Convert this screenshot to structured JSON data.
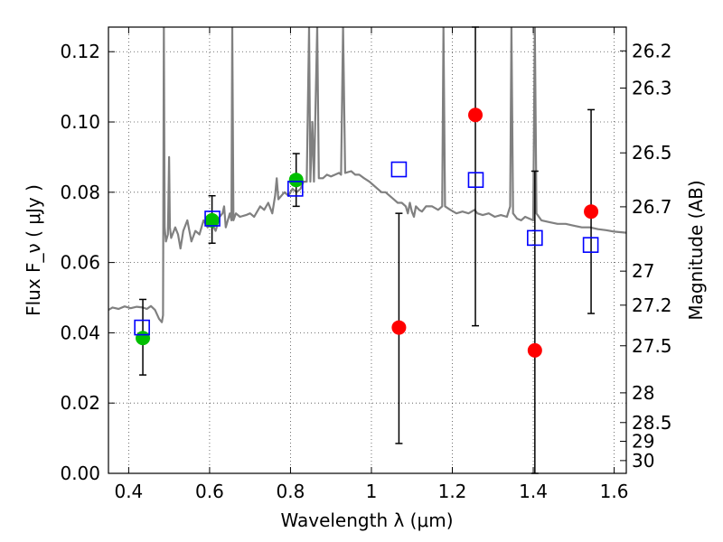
{
  "chart_data": {
    "type": "scatter",
    "xlabel": "Wavelength  λ (μm)",
    "ylabel": "Flux  F_ν  ( μJy )",
    "ylabel_right": "Magnitude (AB)",
    "xlim": [
      0.35,
      1.63
    ],
    "ylim": [
      0.0,
      0.127
    ],
    "grid": true,
    "x_ticks": [
      {
        "value": 0.4,
        "label": "0.4"
      },
      {
        "value": 0.6,
        "label": "0.6"
      },
      {
        "value": 0.8,
        "label": "0.8"
      },
      {
        "value": 1.0,
        "label": "1"
      },
      {
        "value": 1.2,
        "label": "1.2"
      },
      {
        "value": 1.4,
        "label": "1.4"
      },
      {
        "value": 1.6,
        "label": "1.6"
      }
    ],
    "y_ticks": [
      {
        "value": 0.0,
        "label": "0.00"
      },
      {
        "value": 0.02,
        "label": "0.02"
      },
      {
        "value": 0.04,
        "label": "0.04"
      },
      {
        "value": 0.06,
        "label": "0.06"
      },
      {
        "value": 0.08,
        "label": "0.08"
      },
      {
        "value": 0.1,
        "label": "0.10"
      },
      {
        "value": 0.12,
        "label": "0.12"
      }
    ],
    "right_ticks": [
      {
        "mag": 26.2,
        "label": "26.2"
      },
      {
        "mag": 26.3,
        "label": "26.3"
      },
      {
        "mag": 26.5,
        "label": "26.5"
      },
      {
        "mag": 26.7,
        "label": "26.7"
      },
      {
        "mag": 27.0,
        "label": "27"
      },
      {
        "mag": 27.2,
        "label": "27.2"
      },
      {
        "mag": 27.5,
        "label": "27.5"
      },
      {
        "mag": 28.0,
        "label": "28"
      },
      {
        "mag": 28.5,
        "label": "28.5"
      },
      {
        "mag": 29.0,
        "label": "29"
      },
      {
        "mag": 30.0,
        "label": "30"
      }
    ],
    "series": [
      {
        "kind": "model_spectrum",
        "color": "#808080",
        "points": [
          [
            0.35,
            0.0465
          ],
          [
            0.36,
            0.0472
          ],
          [
            0.375,
            0.0468
          ],
          [
            0.39,
            0.0475
          ],
          [
            0.405,
            0.047
          ],
          [
            0.42,
            0.0474
          ],
          [
            0.435,
            0.0472
          ],
          [
            0.445,
            0.0468
          ],
          [
            0.455,
            0.0476
          ],
          [
            0.465,
            0.0465
          ],
          [
            0.475,
            0.044
          ],
          [
            0.482,
            0.043
          ],
          [
            0.485,
            0.045
          ],
          [
            0.487,
            0.127
          ],
          [
            0.489,
            0.07
          ],
          [
            0.492,
            0.066
          ],
          [
            0.497,
            0.068
          ],
          [
            0.5,
            0.09
          ],
          [
            0.502,
            0.07
          ],
          [
            0.505,
            0.067
          ],
          [
            0.515,
            0.07
          ],
          [
            0.522,
            0.068
          ],
          [
            0.528,
            0.064
          ],
          [
            0.535,
            0.069
          ],
          [
            0.545,
            0.072
          ],
          [
            0.555,
            0.066
          ],
          [
            0.565,
            0.069
          ],
          [
            0.575,
            0.068
          ],
          [
            0.585,
            0.072
          ],
          [
            0.595,
            0.07
          ],
          [
            0.605,
            0.071
          ],
          [
            0.615,
            0.069
          ],
          [
            0.625,
            0.073
          ],
          [
            0.632,
            0.074
          ],
          [
            0.636,
            0.076
          ],
          [
            0.64,
            0.07
          ],
          [
            0.65,
            0.074
          ],
          [
            0.654,
            0.072
          ],
          [
            0.656,
            0.127
          ],
          [
            0.659,
            0.072
          ],
          [
            0.665,
            0.074
          ],
          [
            0.675,
            0.073
          ],
          [
            0.69,
            0.0735
          ],
          [
            0.7,
            0.074
          ],
          [
            0.71,
            0.073
          ],
          [
            0.725,
            0.076
          ],
          [
            0.735,
            0.075
          ],
          [
            0.745,
            0.077
          ],
          [
            0.755,
            0.074
          ],
          [
            0.762,
            0.079
          ],
          [
            0.766,
            0.084
          ],
          [
            0.77,
            0.078
          ],
          [
            0.785,
            0.08
          ],
          [
            0.795,
            0.079
          ],
          [
            0.805,
            0.081
          ],
          [
            0.815,
            0.08
          ],
          [
            0.825,
            0.081
          ],
          [
            0.832,
            0.083
          ],
          [
            0.84,
            0.083
          ],
          [
            0.846,
            0.127
          ],
          [
            0.849,
            0.083
          ],
          [
            0.854,
            0.1
          ],
          [
            0.858,
            0.083
          ],
          [
            0.866,
            0.127
          ],
          [
            0.87,
            0.084
          ],
          [
            0.88,
            0.084
          ],
          [
            0.89,
            0.085
          ],
          [
            0.9,
            0.0845
          ],
          [
            0.91,
            0.085
          ],
          [
            0.92,
            0.0855
          ],
          [
            0.925,
            0.085
          ],
          [
            0.93,
            0.127
          ],
          [
            0.935,
            0.0855
          ],
          [
            0.95,
            0.086
          ],
          [
            0.96,
            0.085
          ],
          [
            0.97,
            0.085
          ],
          [
            0.982,
            0.084
          ],
          [
            0.995,
            0.083
          ],
          [
            1.005,
            0.082
          ],
          [
            1.015,
            0.081
          ],
          [
            1.025,
            0.08
          ],
          [
            1.035,
            0.08
          ],
          [
            1.045,
            0.079
          ],
          [
            1.055,
            0.078
          ],
          [
            1.065,
            0.077
          ],
          [
            1.075,
            0.077
          ],
          [
            1.085,
            0.076
          ],
          [
            1.09,
            0.074
          ],
          [
            1.095,
            0.077
          ],
          [
            1.1,
            0.0745
          ],
          [
            1.105,
            0.073
          ],
          [
            1.11,
            0.076
          ],
          [
            1.118,
            0.075
          ],
          [
            1.125,
            0.0745
          ],
          [
            1.135,
            0.076
          ],
          [
            1.15,
            0.076
          ],
          [
            1.165,
            0.075
          ],
          [
            1.175,
            0.076
          ],
          [
            1.178,
            0.127
          ],
          [
            1.182,
            0.076
          ],
          [
            1.195,
            0.075
          ],
          [
            1.21,
            0.074
          ],
          [
            1.225,
            0.0745
          ],
          [
            1.24,
            0.074
          ],
          [
            1.255,
            0.075
          ],
          [
            1.262,
            0.074
          ],
          [
            1.275,
            0.0735
          ],
          [
            1.29,
            0.074
          ],
          [
            1.305,
            0.073
          ],
          [
            1.32,
            0.0735
          ],
          [
            1.335,
            0.073
          ],
          [
            1.343,
            0.076
          ],
          [
            1.346,
            0.127
          ],
          [
            1.35,
            0.074
          ],
          [
            1.36,
            0.0725
          ],
          [
            1.37,
            0.072
          ],
          [
            1.38,
            0.073
          ],
          [
            1.39,
            0.0725
          ],
          [
            1.4,
            0.072
          ],
          [
            1.404,
            0.127
          ],
          [
            1.408,
            0.074
          ],
          [
            1.42,
            0.072
          ],
          [
            1.44,
            0.0715
          ],
          [
            1.46,
            0.071
          ],
          [
            1.48,
            0.071
          ],
          [
            1.5,
            0.0705
          ],
          [
            1.52,
            0.07
          ],
          [
            1.54,
            0.07
          ],
          [
            1.56,
            0.0695
          ],
          [
            1.58,
            0.0692
          ],
          [
            1.6,
            0.0688
          ],
          [
            1.63,
            0.0685
          ]
        ]
      },
      {
        "kind": "points",
        "color": "#00bf00",
        "points": [
          {
            "x": 0.435,
            "y": 0.0385,
            "yerr_low": 0.028,
            "yerr_high": 0.0495
          },
          {
            "x": 0.606,
            "y": 0.072,
            "yerr_low": 0.0655,
            "yerr_high": 0.079
          },
          {
            "x": 0.814,
            "y": 0.0835,
            "yerr_low": 0.076,
            "yerr_high": 0.091
          }
        ]
      },
      {
        "kind": "points",
        "color": "#ff0000",
        "points": [
          {
            "x": 1.068,
            "y": 0.0415,
            "yerr_low": 0.0085,
            "yerr_high": 0.074
          },
          {
            "x": 1.257,
            "y": 0.102,
            "yerr_low": 0.042,
            "yerr_high": 0.127
          },
          {
            "x": 1.404,
            "y": 0.035,
            "yerr_low": 0.0,
            "yerr_high": 0.086
          },
          {
            "x": 1.543,
            "y": 0.0745,
            "yerr_low": 0.0455,
            "yerr_high": 0.1035
          }
        ]
      },
      {
        "kind": "open_squares",
        "color": "#0000ff",
        "points": [
          {
            "x": 0.433,
            "y": 0.0415
          },
          {
            "x": 0.607,
            "y": 0.0725
          },
          {
            "x": 0.812,
            "y": 0.081
          },
          {
            "x": 1.068,
            "y": 0.0865
          },
          {
            "x": 1.258,
            "y": 0.0835
          },
          {
            "x": 1.404,
            "y": 0.067
          },
          {
            "x": 1.542,
            "y": 0.065
          }
        ]
      }
    ]
  }
}
